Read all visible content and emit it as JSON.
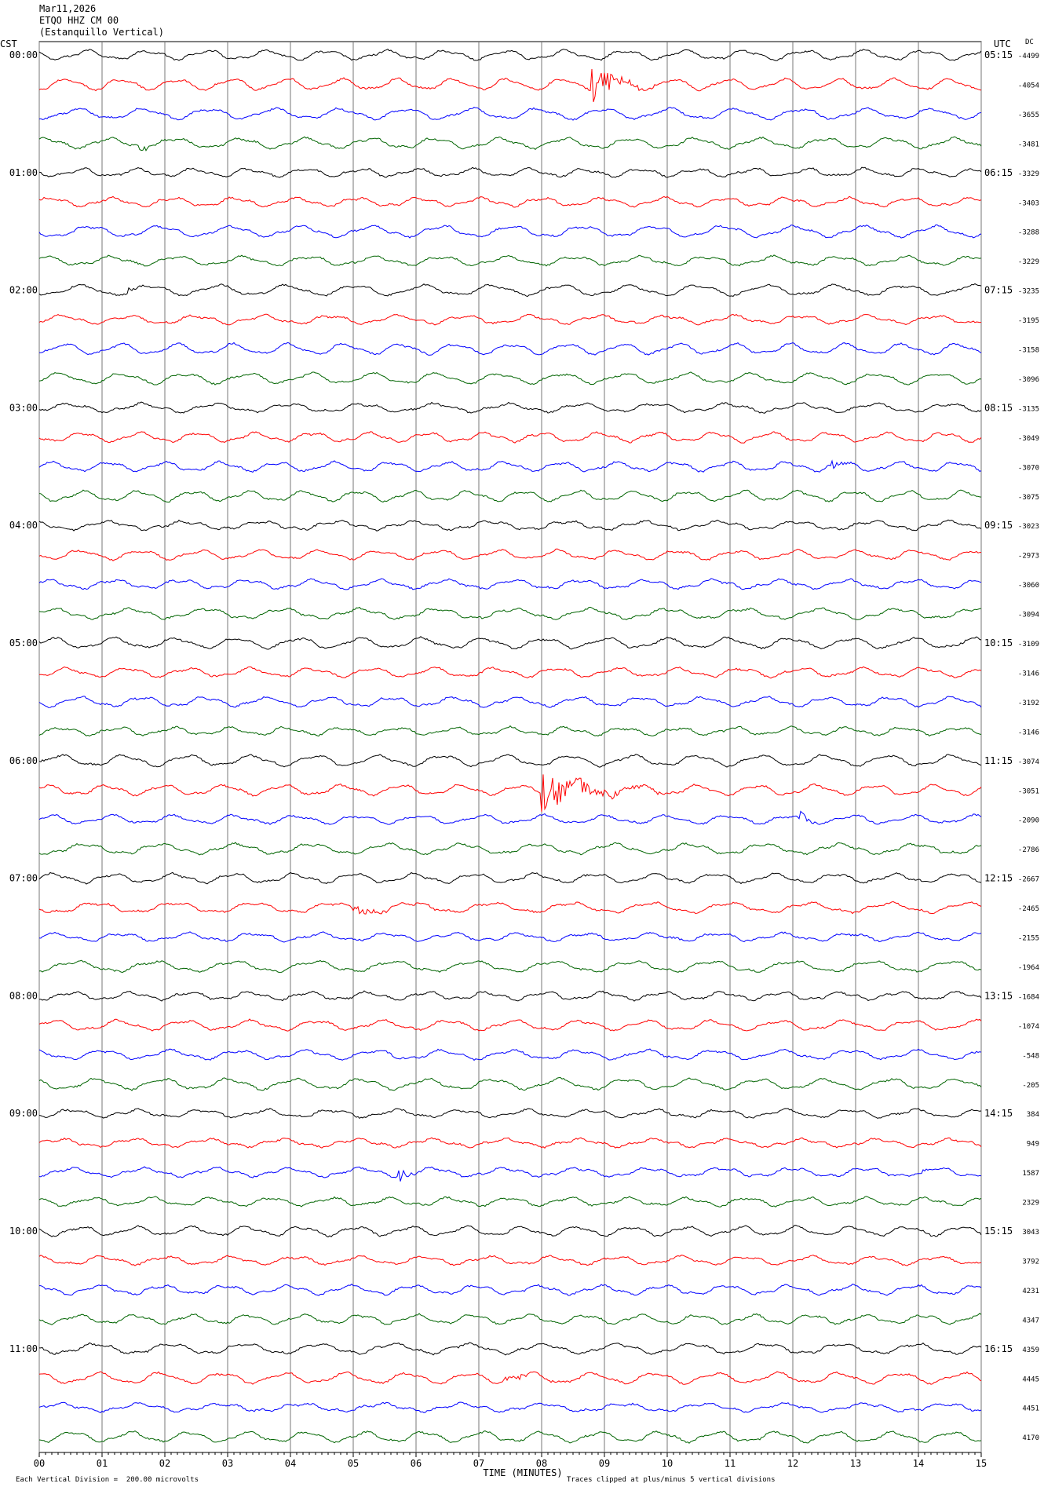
{
  "header": {
    "date": "Mar11,2026",
    "station": "ETQO HHZ CM 00",
    "location": "(Estanquillo Vertical)"
  },
  "left_label": "CST",
  "right_label": "UTC",
  "dc_label": "DC",
  "footer": {
    "scale_note": "Each Vertical Division =  200.00 microvolts",
    "clip_note": "Traces clipped at plus/minus 5 vertical divisions"
  },
  "chart_data": {
    "type": "line",
    "title": "",
    "xlabel": "TIME (MINUTES)",
    "ylabel": "",
    "x_ticks": [
      "00",
      "01",
      "02",
      "03",
      "04",
      "05",
      "06",
      "07",
      "08",
      "09",
      "10",
      "11",
      "12",
      "13",
      "14",
      "15"
    ],
    "xlim": [
      0,
      15
    ],
    "grid": true,
    "trace_colors": [
      "#000000",
      "#ff0000",
      "#0000ff",
      "#006400"
    ],
    "cst_hour_labels": [
      "00:00",
      "01:00",
      "02:00",
      "03:00",
      "04:00",
      "05:00",
      "06:00",
      "07:00",
      "08:00",
      "09:00",
      "10:00",
      "11:00"
    ],
    "utc_hour_labels": [
      "05:15",
      "06:15",
      "07:15",
      "08:15",
      "09:15",
      "10:15",
      "11:15",
      "12:15",
      "13:15",
      "14:15",
      "15:15",
      "16:15"
    ],
    "dc_offsets": [
      "-4499",
      "-4054",
      "-3655",
      "-3481",
      "-3329",
      "-3403",
      "-3288",
      "-3229",
      "-3235",
      "-3195",
      "-3158",
      "-3096",
      "-3135",
      "-3049",
      "-3070",
      "-3075",
      "-3023",
      "-2973",
      "-3060",
      "-3094",
      "-3109",
      "-3146",
      "-3192",
      "-3146",
      "-3074",
      "-3051",
      "-2090",
      "-2786",
      "-2667",
      "-2465",
      "-2155",
      "-1964",
      "-1684",
      "-1074",
      "-548",
      "-205",
      "384",
      "949",
      "1587",
      "2329",
      "3043",
      "3792",
      "4231",
      "4347",
      "4359",
      "4445",
      "4451",
      "4170"
    ],
    "events": [
      {
        "trace": 1,
        "minute": 8.8,
        "amplitude": 5,
        "duration_min": 1.0
      },
      {
        "trace": 3,
        "minute": 1.6,
        "amplitude": 1.6,
        "duration_min": 0.4
      },
      {
        "trace": 8,
        "minute": 1.4,
        "amplitude": 1.4,
        "duration_min": 0.3
      },
      {
        "trace": 14,
        "minute": 12.6,
        "amplitude": 1.4,
        "duration_min": 0.4
      },
      {
        "trace": 25,
        "minute": 8.0,
        "amplitude": 5,
        "duration_min": 1.9
      },
      {
        "trace": 26,
        "minute": 12.1,
        "amplitude": 1.6,
        "duration_min": 0.4
      },
      {
        "trace": 29,
        "minute": 5.0,
        "amplitude": 0.9,
        "duration_min": 2.3
      },
      {
        "trace": 38,
        "minute": 5.7,
        "amplitude": 2.2,
        "duration_min": 0.5
      },
      {
        "trace": 38,
        "minute": 14.0,
        "amplitude": 1.4,
        "duration_min": 0.3
      },
      {
        "trace": 45,
        "minute": 7.4,
        "amplitude": 0.9,
        "duration_min": 1.2
      }
    ]
  }
}
